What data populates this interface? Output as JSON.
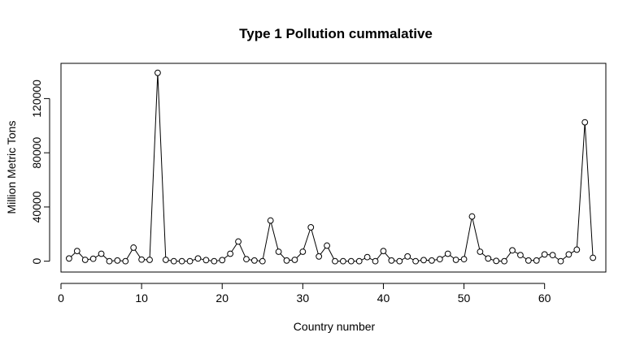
{
  "chart_data": {
    "type": "line",
    "title": "Type 1 Pollution cummalative",
    "xlabel": "Country number",
    "ylabel": "Million Metric Tons",
    "xlim": [
      0,
      67.6
    ],
    "ylim": [
      -8000,
      146000
    ],
    "xticks": [
      0,
      10,
      20,
      30,
      40,
      50,
      60
    ],
    "yticks": [
      0,
      40000,
      80000,
      120000
    ],
    "grid": false,
    "legend": "none",
    "line_color": "#000000",
    "marker": "open-circle",
    "series": [
      {
        "x": [
          1,
          2,
          3,
          4,
          5,
          6,
          7,
          8,
          9,
          10,
          11,
          12,
          13,
          14,
          15,
          16,
          17,
          18,
          19,
          20,
          21,
          22,
          23,
          24,
          25,
          26,
          27,
          28,
          29,
          30,
          31,
          32,
          33,
          34,
          35,
          36,
          37,
          38,
          39,
          40,
          41,
          42,
          43,
          44,
          45,
          46,
          47,
          48,
          49,
          50,
          51,
          52,
          53,
          54,
          55,
          56,
          57,
          58,
          59,
          60,
          61,
          62,
          63,
          64,
          65,
          66
        ],
        "values": [
          2000,
          7500,
          1000,
          1800,
          5500,
          0,
          500,
          0,
          10000,
          1200,
          1000,
          139000,
          1000,
          0,
          0,
          0,
          2000,
          800,
          0,
          800,
          5500,
          14500,
          1500,
          500,
          0,
          30000,
          7000,
          500,
          1000,
          7000,
          25000,
          3500,
          11500,
          0,
          0,
          0,
          0,
          3000,
          0,
          7500,
          500,
          0,
          3500,
          0,
          800,
          500,
          1500,
          5500,
          1000,
          1500,
          33000,
          7000,
          2000,
          200,
          0,
          8000,
          4500,
          500,
          500,
          5000,
          4500,
          0,
          5000,
          8500,
          102500,
          2500
        ]
      }
    ]
  }
}
